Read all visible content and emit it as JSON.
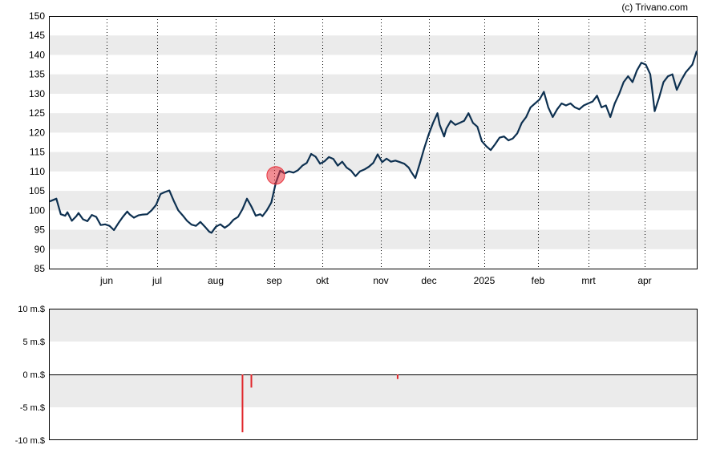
{
  "credit": "(c) Trivano.com",
  "colors": {
    "price_line": "#0d3050",
    "band": "#ebebeb",
    "volume_bar": "#e0262b",
    "marker": "#e8323c"
  },
  "chart_data": [
    {
      "type": "line",
      "ylim": [
        85,
        150
      ],
      "y_ticks": [
        "150",
        "145",
        "140",
        "135",
        "130",
        "125",
        "120",
        "115",
        "110",
        "105",
        "100",
        "95",
        "90",
        "85"
      ],
      "x_ticks": [
        "jun",
        "jul",
        "aug",
        "sep",
        "okt",
        "nov",
        "dec",
        "2025",
        "feb",
        "mrt",
        "apr"
      ],
      "grid": "vertical dotted lines at month starts, alternating horizontal bands",
      "series": [
        {
          "points": [
            [
              0,
              102.3
            ],
            [
              3,
              103.0
            ],
            [
              5,
              99.0
            ],
            [
              7,
              98.6
            ],
            [
              8,
              99.5
            ],
            [
              10,
              97.3
            ],
            [
              12,
              98.5
            ],
            [
              13,
              99.3
            ],
            [
              15,
              97.7
            ],
            [
              17,
              97.2
            ],
            [
              19,
              98.8
            ],
            [
              21,
              98.3
            ],
            [
              23,
              96.2
            ],
            [
              25,
              96.4
            ],
            [
              27,
              96.0
            ],
            [
              29,
              94.9
            ],
            [
              31,
              96.7
            ],
            [
              33,
              98.3
            ],
            [
              35,
              99.7
            ],
            [
              36,
              99.0
            ],
            [
              38,
              98.1
            ],
            [
              40,
              98.7
            ],
            [
              42,
              98.9
            ],
            [
              44,
              99.0
            ],
            [
              46,
              100.0
            ],
            [
              48,
              101.4
            ],
            [
              50,
              104.2
            ],
            [
              52,
              104.7
            ],
            [
              54,
              105.1
            ],
            [
              56,
              102.4
            ],
            [
              58,
              100.0
            ],
            [
              60,
              98.7
            ],
            [
              62,
              97.3
            ],
            [
              64,
              96.3
            ],
            [
              66,
              96.0
            ],
            [
              68,
              97.0
            ],
            [
              70,
              95.8
            ],
            [
              72,
              94.5
            ],
            [
              73,
              94.2
            ],
            [
              75,
              95.8
            ],
            [
              77,
              96.4
            ],
            [
              79,
              95.5
            ],
            [
              81,
              96.3
            ],
            [
              83,
              97.6
            ],
            [
              85,
              98.3
            ],
            [
              87,
              100.3
            ],
            [
              89,
              103.0
            ],
            [
              91,
              101.0
            ],
            [
              93,
              98.6
            ],
            [
              95,
              99.0
            ],
            [
              96,
              98.5
            ],
            [
              98,
              100.0
            ],
            [
              100,
              102.0
            ],
            [
              102,
              107.0
            ],
            [
              104,
              110.2
            ],
            [
              106,
              109.5
            ],
            [
              108,
              110.0
            ],
            [
              110,
              109.7
            ],
            [
              112,
              110.3
            ],
            [
              114,
              111.5
            ],
            [
              116,
              112.2
            ],
            [
              118,
              114.5
            ],
            [
              120,
              113.8
            ],
            [
              122,
              112.0
            ],
            [
              124,
              112.6
            ],
            [
              126,
              113.7
            ],
            [
              128,
              113.2
            ],
            [
              130,
              111.5
            ],
            [
              132,
              112.5
            ],
            [
              134,
              111.0
            ],
            [
              136,
              110.2
            ],
            [
              138,
              108.8
            ],
            [
              140,
              110.0
            ],
            [
              142,
              110.5
            ],
            [
              144,
              111.2
            ],
            [
              146,
              112.2
            ],
            [
              148,
              114.4
            ],
            [
              150,
              112.4
            ],
            [
              152,
              113.3
            ],
            [
              154,
              112.5
            ],
            [
              156,
              112.8
            ],
            [
              158,
              112.4
            ],
            [
              160,
              112.0
            ],
            [
              162,
              111.0
            ],
            [
              163,
              110.0
            ],
            [
              165,
              108.3
            ],
            [
              167,
              112.0
            ],
            [
              169,
              116.0
            ],
            [
              171,
              119.5
            ],
            [
              173,
              122.5
            ],
            [
              175,
              125.0
            ],
            [
              176,
              122.0
            ],
            [
              178,
              119.0
            ],
            [
              179,
              121.0
            ],
            [
              181,
              123.0
            ],
            [
              183,
              122.0
            ],
            [
              185,
              122.5
            ],
            [
              187,
              123.0
            ],
            [
              189,
              125.0
            ],
            [
              191,
              122.5
            ],
            [
              193,
              121.5
            ],
            [
              195,
              117.8
            ],
            [
              197,
              116.5
            ],
            [
              199,
              115.5
            ],
            [
              201,
              117.0
            ],
            [
              203,
              118.7
            ],
            [
              205,
              119.0
            ],
            [
              207,
              118.0
            ],
            [
              209,
              118.5
            ],
            [
              211,
              119.8
            ],
            [
              213,
              122.5
            ],
            [
              215,
              124.0
            ],
            [
              217,
              126.5
            ],
            [
              219,
              127.5
            ],
            [
              221,
              128.5
            ],
            [
              223,
              130.5
            ],
            [
              225,
              126.5
            ],
            [
              227,
              124.0
            ],
            [
              229,
              126.0
            ],
            [
              231,
              127.5
            ],
            [
              233,
              127.0
            ],
            [
              235,
              127.5
            ],
            [
              237,
              126.5
            ],
            [
              239,
              126.0
            ],
            [
              241,
              127.0
            ],
            [
              243,
              127.5
            ],
            [
              245,
              128.0
            ],
            [
              247,
              129.5
            ],
            [
              249,
              126.5
            ],
            [
              251,
              127.0
            ],
            [
              253,
              124.0
            ],
            [
              255,
              127.5
            ],
            [
              257,
              130.0
            ],
            [
              259,
              133.0
            ],
            [
              261,
              134.5
            ],
            [
              263,
              133.0
            ],
            [
              265,
              136.0
            ],
            [
              267,
              138.0
            ],
            [
              269,
              137.5
            ],
            [
              271,
              135.0
            ],
            [
              272,
              130.5
            ],
            [
              273,
              125.5
            ],
            [
              275,
              129.0
            ],
            [
              277,
              133.0
            ],
            [
              279,
              134.5
            ],
            [
              281,
              135.0
            ],
            [
              283,
              131.0
            ],
            [
              285,
              133.5
            ],
            [
              287,
              135.5
            ],
            [
              290,
              137.5
            ],
            [
              292,
              141.0
            ]
          ]
        }
      ],
      "marker": {
        "x": 102,
        "y": 109.0
      }
    },
    {
      "type": "bar",
      "ylim": [
        -10,
        10
      ],
      "y_ticks": [
        "10 m.$",
        "5 m.$",
        "0 m.$",
        "-5 m.$",
        "-10 m.$"
      ],
      "series": [
        {
          "points": [
            [
              87,
              -8.8
            ],
            [
              91,
              -2.0
            ],
            [
              157,
              -0.7
            ]
          ]
        }
      ]
    }
  ]
}
